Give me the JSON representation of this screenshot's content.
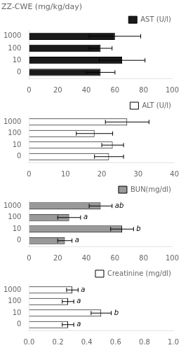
{
  "chart_data": [
    {
      "type": "bar",
      "orientation": "horizontal",
      "title": "ZZ-CWE (mg/kg/day)",
      "categories": [
        "0",
        "10",
        "100",
        "1000"
      ],
      "series": [
        {
          "name": "AST (U/l)",
          "color": "#1a1a1a",
          "values": [
            50,
            65,
            50,
            60
          ],
          "errors": [
            10,
            16,
            8,
            18
          ]
        }
      ],
      "xlim": [
        0,
        100
      ],
      "xticks": [
        0,
        20,
        40,
        60,
        80,
        100
      ],
      "grid": false,
      "legend": "upper right"
    },
    {
      "type": "bar",
      "orientation": "horizontal",
      "categories": [
        "0",
        "10",
        "100",
        "1000"
      ],
      "series": [
        {
          "name": "ALT (U/l)",
          "color": "#ffffff",
          "values": [
            22,
            23,
            18,
            27
          ],
          "errors": [
            4,
            3,
            5,
            6
          ]
        }
      ],
      "xlim": [
        0,
        40
      ],
      "xticks": [
        0,
        10,
        20,
        30,
        40
      ],
      "grid": false,
      "legend": "upper right"
    },
    {
      "type": "bar",
      "orientation": "horizontal",
      "categories": [
        "0",
        "10",
        "100",
        "1000"
      ],
      "series": [
        {
          "name": "BUN(mg/dl)",
          "color": "#999999",
          "values": [
            25,
            65,
            28,
            50
          ],
          "errors": [
            5,
            8,
            8,
            8
          ]
        }
      ],
      "annotations": [
        "a",
        "b",
        "a",
        "ab"
      ],
      "xlim": [
        0,
        100
      ],
      "xticks": [
        0,
        20,
        40,
        60,
        80,
        100
      ],
      "grid": false,
      "legend": "upper right"
    },
    {
      "type": "bar",
      "orientation": "horizontal",
      "categories": [
        "0",
        "10",
        "100",
        "1000"
      ],
      "series": [
        {
          "name": "Creatinine (mg/dl)",
          "color": "#ffffff",
          "values": [
            0.27,
            0.5,
            0.27,
            0.3
          ],
          "errors": [
            0.04,
            0.07,
            0.04,
            0.04
          ]
        }
      ],
      "annotations": [
        "a",
        "b",
        "a",
        "a"
      ],
      "xlim": [
        0,
        1
      ],
      "xticks": [
        {
          "value": 0,
          "label": "0.0"
        },
        0.2,
        0.4,
        0.6,
        0.8,
        {
          "value": 1,
          "label": "1.0"
        }
      ],
      "grid": false,
      "legend": "upper right"
    }
  ]
}
